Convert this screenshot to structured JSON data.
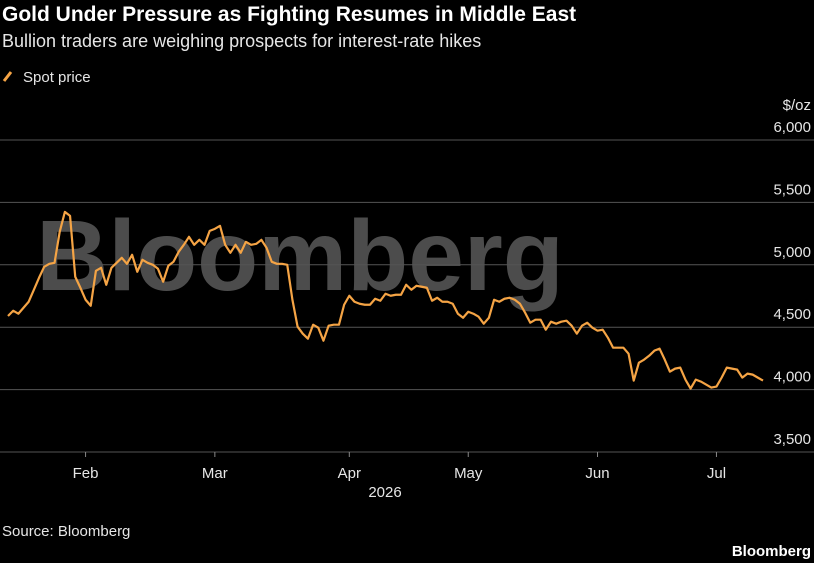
{
  "chart_data": {
    "type": "line",
    "title": "Gold Under Pressure as Fighting Resumes in Middle East",
    "subtitle": "Bullion traders are weighing prospects for interest-rate hikes",
    "y_label": "$/oz",
    "x_label": "2026",
    "source": "Source: Bloomberg",
    "brand": "Bloomberg",
    "watermark": "Bloomberg",
    "grid": true,
    "ylim": [
      3500,
      6000
    ],
    "yticks": [
      {
        "value": 3500,
        "label": "3,500"
      },
      {
        "value": 4000,
        "label": "4,000"
      },
      {
        "value": 4500,
        "label": "4,500"
      },
      {
        "value": 5000,
        "label": "5,000"
      },
      {
        "value": 5500,
        "label": "5,500"
      },
      {
        "value": 6000,
        "label": "6,000"
      }
    ],
    "categories": [
      null,
      null,
      null,
      null,
      null,
      null,
      null,
      null,
      null,
      null,
      null,
      null,
      null,
      null,
      null,
      "Feb",
      null,
      null,
      null,
      null,
      null,
      null,
      null,
      null,
      null,
      null,
      null,
      null,
      null,
      null,
      null,
      null,
      null,
      null,
      null,
      null,
      null,
      null,
      null,
      null,
      "Mar",
      null,
      null,
      null,
      null,
      null,
      null,
      null,
      null,
      null,
      null,
      null,
      null,
      null,
      null,
      null,
      null,
      null,
      null,
      null,
      null,
      null,
      null,
      null,
      null,
      null,
      "Apr",
      null,
      null,
      null,
      null,
      null,
      null,
      null,
      null,
      null,
      null,
      null,
      null,
      null,
      null,
      null,
      null,
      null,
      null,
      null,
      null,
      null,
      null,
      "May",
      null,
      null,
      null,
      null,
      null,
      null,
      null,
      null,
      null,
      null,
      null,
      null,
      null,
      null,
      null,
      null,
      null,
      null,
      null,
      null,
      null,
      null,
      null,
      null,
      "Jun",
      null,
      null,
      null,
      null,
      null,
      null,
      null,
      null,
      null,
      null,
      null,
      null,
      null,
      null,
      null,
      null,
      null,
      null,
      null,
      null,
      null,
      null,
      "Jul",
      null,
      null,
      null,
      null,
      null,
      null,
      null,
      null,
      null
    ],
    "series": [
      {
        "name": "Spot price",
        "color": "#f5a445",
        "values": [
          4590,
          4632,
          4608,
          4656,
          4704,
          4800,
          4896,
          4984,
          5008,
          5016,
          5264,
          5424,
          5392,
          4904,
          4816,
          4720,
          4672,
          4952,
          4976,
          4840,
          4976,
          5016,
          5056,
          5008,
          5080,
          4944,
          5040,
          5016,
          5000,
          4968,
          4864,
          4992,
          5024,
          5104,
          5160,
          5224,
          5160,
          5200,
          5160,
          5272,
          5288,
          5312,
          5160,
          5096,
          5160,
          5096,
          5184,
          5160,
          5168,
          5200,
          5136,
          5024,
          5008,
          5008,
          5000,
          4720,
          4504,
          4448,
          4408,
          4520,
          4496,
          4392,
          4512,
          4520,
          4520,
          4680,
          4752,
          4704,
          4688,
          4680,
          4680,
          4728,
          4712,
          4768,
          4752,
          4760,
          4760,
          4840,
          4800,
          4832,
          4824,
          4816,
          4712,
          4736,
          4704,
          4704,
          4688,
          4608,
          4576,
          4624,
          4608,
          4584,
          4528,
          4576,
          4720,
          4704,
          4728,
          4736,
          4720,
          4688,
          4616,
          4536,
          4560,
          4560,
          4480,
          4544,
          4528,
          4544,
          4552,
          4512,
          4448,
          4512,
          4536,
          4496,
          4472,
          4480,
          4416,
          4336,
          4336,
          4336,
          4288,
          4072,
          4216,
          4240,
          4272,
          4312,
          4328,
          4240,
          4144,
          4168,
          4176,
          4080,
          4008,
          4080,
          4064,
          4040,
          4016,
          4024,
          4096,
          4176,
          4168,
          4160,
          4096,
          4128,
          4120,
          4096,
          4072
        ]
      }
    ]
  }
}
